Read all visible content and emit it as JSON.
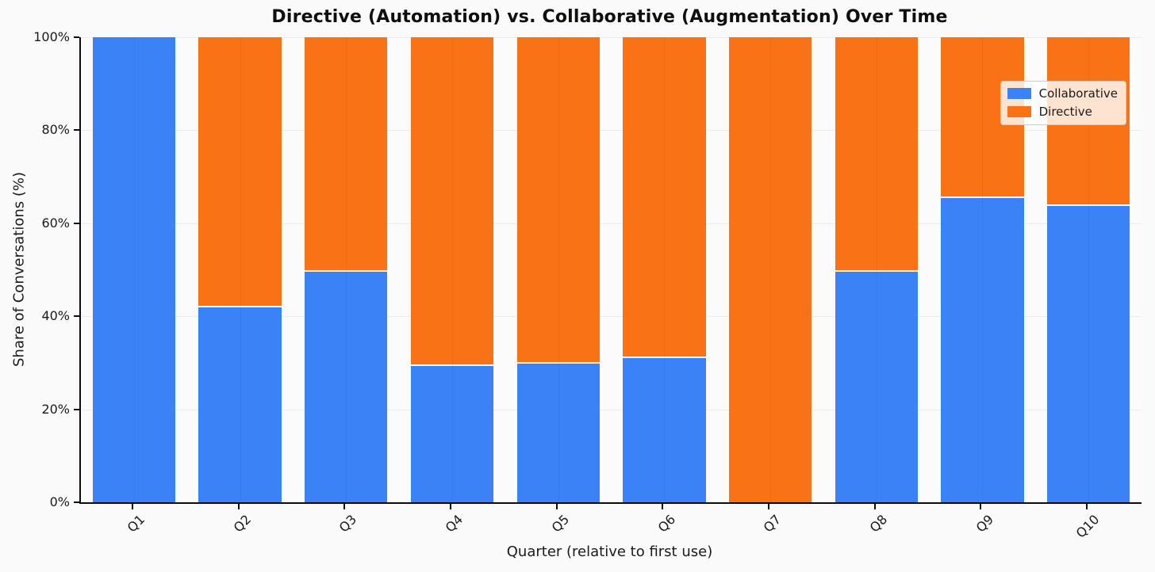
{
  "figure": {
    "background": "#fafafa"
  },
  "chart_data": {
    "type": "bar",
    "stacked": true,
    "percent_stacked": true,
    "title": "Directive (Automation) vs. Collaborative (Augmentation) Over Time",
    "xlabel": "Quarter (relative to first use)",
    "ylabel": "Share of Conversations (%)",
    "categories": [
      "Q1",
      "Q2",
      "Q3",
      "Q4",
      "Q5",
      "Q6",
      "Q7",
      "Q8",
      "Q9",
      "Q10"
    ],
    "series": [
      {
        "name": "Collaborative",
        "color": "#3b82f6",
        "values": [
          100,
          42.3,
          50,
          29.6,
          30.2,
          31.4,
          0,
          50,
          65.7,
          64.1
        ]
      },
      {
        "name": "Directive",
        "color": "#f97316",
        "values": [
          0,
          57.7,
          50,
          70.4,
          69.8,
          68.6,
          100,
          50,
          34.3,
          35.9
        ]
      }
    ],
    "ylim": [
      0,
      100
    ],
    "yticks": [
      {
        "value": 0,
        "label": "0%"
      },
      {
        "value": 20,
        "label": "20%"
      },
      {
        "value": 40,
        "label": "40%"
      },
      {
        "value": 60,
        "label": "60%"
      },
      {
        "value": 80,
        "label": "80%"
      },
      {
        "value": 100,
        "label": "100%"
      }
    ],
    "grid": true,
    "legend_position": "upper right",
    "bar_width_ratio": 0.78
  }
}
